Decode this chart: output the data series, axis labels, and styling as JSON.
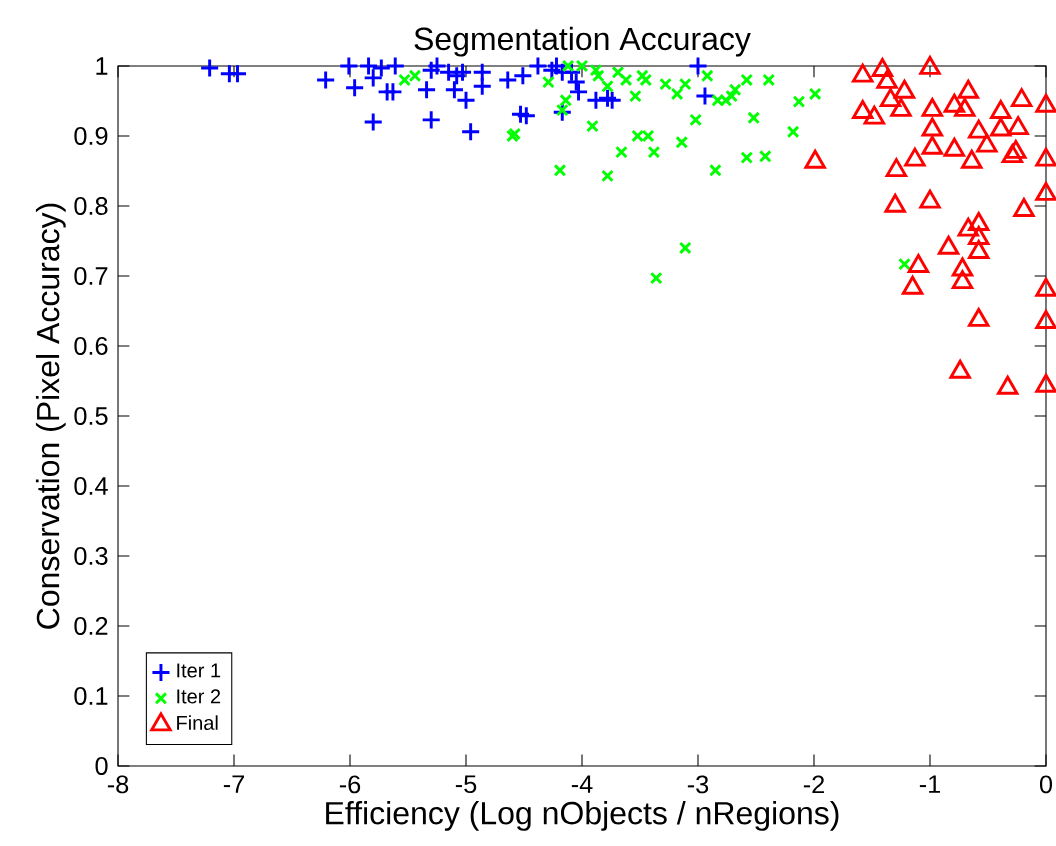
{
  "chart_data": {
    "type": "scatter",
    "title": "Segmentation Accuracy",
    "xlabel": "Efficiency (Log nObjects / nRegions)",
    "ylabel": "Conservation (Pixel Accuracy)",
    "xlim": [
      -8,
      0
    ],
    "ylim": [
      0,
      1
    ],
    "xticks": [
      -8,
      -7,
      -6,
      -5,
      -4,
      -3,
      -2,
      -1,
      0
    ],
    "yticks": [
      0,
      0.1,
      0.2,
      0.3,
      0.4,
      0.5,
      0.6,
      0.7,
      0.8,
      0.9,
      1
    ],
    "legend": "bottom left",
    "grid": false,
    "series": [
      {
        "name": "Iter 1",
        "color": "#0000ff",
        "marker": "plus",
        "x": [
          -7.21,
          -7.04,
          -6.97,
          -6.21,
          -6.01,
          -5.96,
          -5.84,
          -5.8,
          -5.73,
          -5.61,
          -5.68,
          -5.63,
          -5.8,
          -5.34,
          -5.3,
          -5.25,
          -5.15,
          -5.08,
          -5.03,
          -5.1,
          -5.0,
          -5.3,
          -4.96,
          -4.86,
          -4.86,
          -4.64,
          -4.53,
          -4.51,
          -4.48,
          -4.38,
          -4.26,
          -4.22,
          -4.17,
          -4.09,
          -4.05,
          -4.03,
          -4.17,
          -3.88,
          -3.78,
          -3.74,
          -3.0,
          -2.94
        ],
        "values": [
          0.997,
          0.989,
          0.989,
          0.98,
          1.0,
          0.969,
          1.0,
          0.983,
          0.997,
          1.0,
          0.963,
          0.963,
          0.92,
          0.966,
          0.994,
          1.0,
          0.991,
          0.986,
          0.991,
          0.966,
          0.951,
          0.923,
          0.906,
          0.991,
          0.971,
          0.98,
          0.931,
          0.986,
          0.929,
          1.0,
          0.994,
          1.0,
          0.991,
          0.991,
          0.977,
          0.963,
          0.934,
          0.951,
          0.954,
          0.951,
          1.0,
          0.957
        ]
      },
      {
        "name": "Iter 2",
        "color": "#00ff00",
        "marker": "cross",
        "x": [
          -5.53,
          -5.44,
          -4.58,
          -4.6,
          -4.29,
          -4.19,
          -4.14,
          -4.17,
          -4.12,
          -4.0,
          -3.88,
          -3.86,
          -3.91,
          -3.78,
          -3.78,
          -3.69,
          -3.62,
          -3.54,
          -3.66,
          -3.52,
          -3.43,
          -3.48,
          -3.45,
          -3.38,
          -3.28,
          -3.18,
          -3.11,
          -3.14,
          -3.02,
          -3.11,
          -3.36,
          -2.92,
          -2.85,
          -2.83,
          -2.76,
          -2.71,
          -2.68,
          -2.58,
          -2.52,
          -2.39,
          -2.58,
          -2.42,
          -2.18,
          -2.13,
          -1.99,
          -1.22
        ],
        "values": [
          0.98,
          0.986,
          0.903,
          0.9,
          0.977,
          0.851,
          0.951,
          0.937,
          1.0,
          1.0,
          0.994,
          0.986,
          0.914,
          0.843,
          0.971,
          0.991,
          0.98,
          0.957,
          0.877,
          0.9,
          0.9,
          0.986,
          0.98,
          0.877,
          0.974,
          0.96,
          0.974,
          0.891,
          0.923,
          0.74,
          0.697,
          0.986,
          0.851,
          0.951,
          0.951,
          0.957,
          0.966,
          0.98,
          0.926,
          0.98,
          0.869,
          0.871,
          0.906,
          0.949,
          0.96,
          0.717
        ]
      },
      {
        "name": "Final",
        "color": "#ff0000",
        "marker": "triangle",
        "x": [
          -1.58,
          -1.41,
          -1.0,
          -1.37,
          -1.22,
          -1.34,
          -0.67,
          -1.58,
          -1.48,
          -1.25,
          -0.98,
          -0.79,
          -0.7,
          -0.39,
          -0.21,
          0.0,
          -0.98,
          -0.58,
          -0.39,
          -0.24,
          -0.51,
          -0.98,
          -0.79,
          -0.64,
          -1.13,
          -1.29,
          -0.29,
          -0.26,
          0.0,
          -1.99,
          0.0,
          -1.3,
          -1.0,
          -0.19,
          -0.67,
          -0.58,
          -0.58,
          -0.84,
          -0.58,
          -1.1,
          -0.72,
          -1.15,
          -0.72,
          0.0,
          -0.58,
          0.0,
          -0.74,
          -0.33,
          0.0
        ],
        "values": [
          0.986,
          0.994,
          0.997,
          0.977,
          0.963,
          0.951,
          0.963,
          0.934,
          0.926,
          0.937,
          0.937,
          0.943,
          0.937,
          0.934,
          0.951,
          0.943,
          0.909,
          0.906,
          0.909,
          0.911,
          0.886,
          0.883,
          0.88,
          0.863,
          0.866,
          0.851,
          0.871,
          0.877,
          0.866,
          0.863,
          0.817,
          0.8,
          0.806,
          0.794,
          0.766,
          0.774,
          0.754,
          0.74,
          0.734,
          0.714,
          0.709,
          0.683,
          0.691,
          0.68,
          0.637,
          0.634,
          0.563,
          0.54,
          0.543
        ]
      }
    ]
  }
}
